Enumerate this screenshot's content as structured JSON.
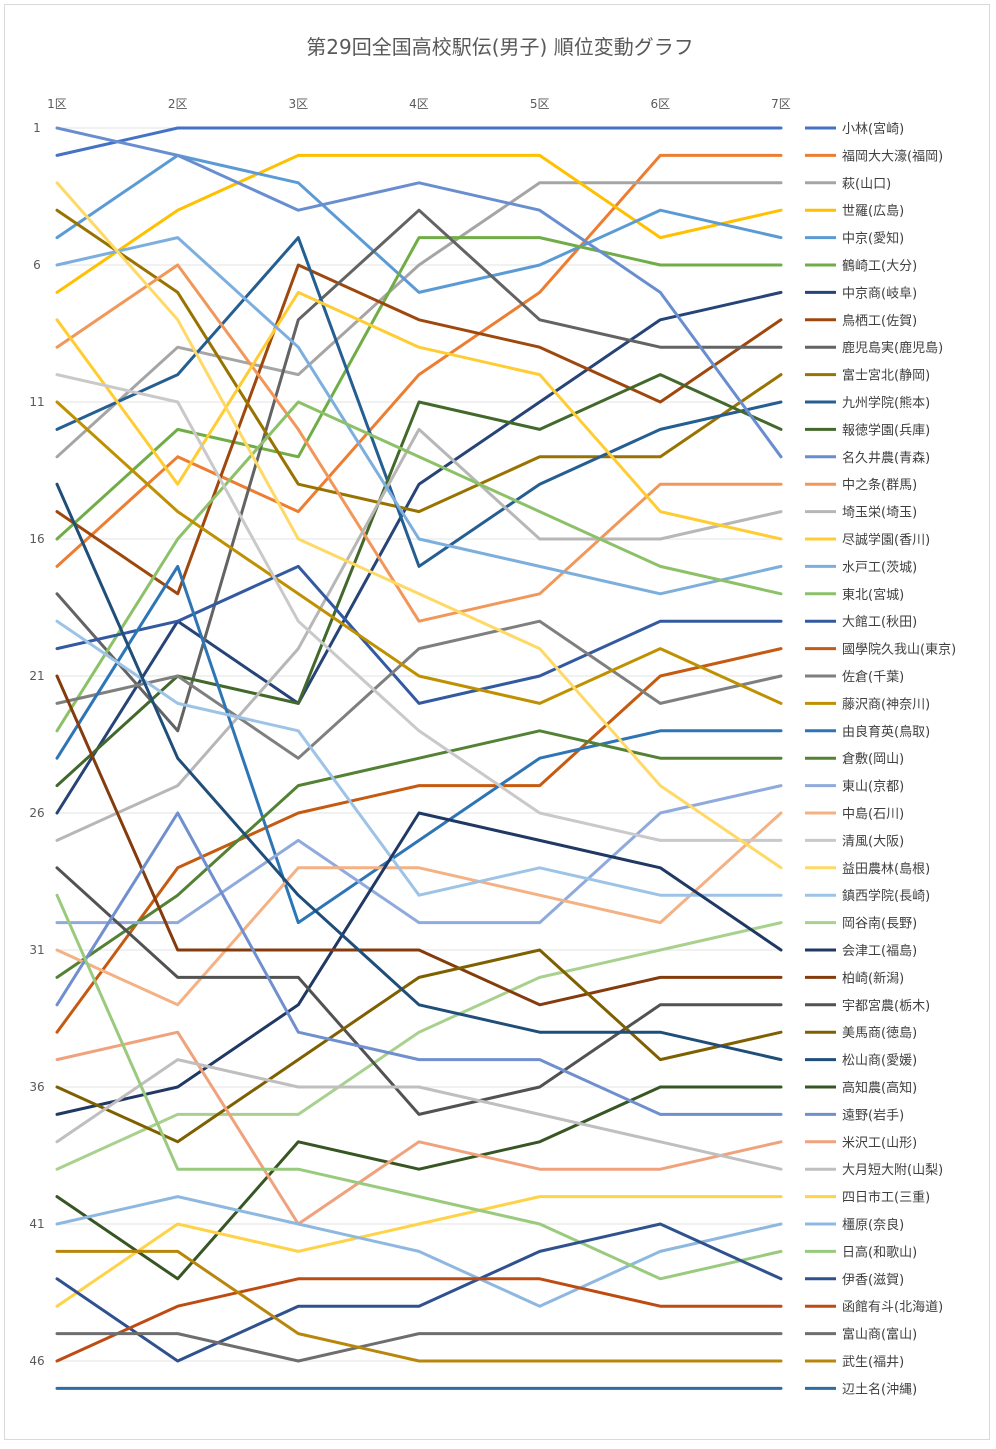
{
  "chart_data": {
    "type": "line",
    "title": "第29回全国高校駅伝(男子) 順位変動グラフ",
    "categories": [
      "1区",
      "2区",
      "3区",
      "4区",
      "5区",
      "6区",
      "7区"
    ],
    "ylim": [
      1,
      47
    ],
    "y_reversed": true,
    "y_ticks": [
      1,
      6,
      11,
      16,
      21,
      26,
      31,
      36,
      41,
      46
    ],
    "grid": true,
    "legend_position": "right",
    "series": [
      {
        "name": "小林(宮崎)",
        "color": "#4472C4",
        "values": [
          2,
          1,
          1,
          1,
          1,
          1,
          1
        ]
      },
      {
        "name": "福岡大大濠(福岡)",
        "color": "#ED7D31",
        "values": [
          17,
          13,
          15,
          10,
          7,
          2,
          2
        ]
      },
      {
        "name": "萩(山口)",
        "color": "#A5A5A5",
        "values": [
          13,
          9,
          10,
          6,
          3,
          3,
          3
        ]
      },
      {
        "name": "世羅(広島)",
        "color": "#FFC000",
        "values": [
          7,
          4,
          2,
          2,
          2,
          5,
          4
        ]
      },
      {
        "name": "中京(愛知)",
        "color": "#5B9BD5",
        "values": [
          5,
          2,
          3,
          7,
          6,
          4,
          5
        ]
      },
      {
        "name": "鶴崎工(大分)",
        "color": "#70AD47",
        "values": [
          16,
          12,
          13,
          5,
          5,
          6,
          6
        ]
      },
      {
        "name": "中京商(岐阜)",
        "color": "#264478",
        "values": [
          26,
          19,
          22,
          14,
          11,
          8,
          7
        ]
      },
      {
        "name": "鳥栖工(佐賀)",
        "color": "#9E480E",
        "values": [
          15,
          18,
          6,
          8,
          9,
          11,
          8
        ]
      },
      {
        "name": "鹿児島実(鹿児島)",
        "color": "#636363",
        "values": [
          18,
          23,
          8,
          4,
          8,
          9,
          9
        ]
      },
      {
        "name": "富士宮北(静岡)",
        "color": "#997300",
        "values": [
          4,
          7,
          14,
          15,
          13,
          13,
          10
        ]
      },
      {
        "name": "九州学院(熊本)",
        "color": "#255E91",
        "values": [
          12,
          10,
          5,
          17,
          14,
          12,
          11
        ]
      },
      {
        "name": "報徳学園(兵庫)",
        "color": "#43682B",
        "values": [
          25,
          21,
          22,
          11,
          12,
          10,
          12
        ]
      },
      {
        "name": "名久井農(青森)",
        "color": "#698ED0",
        "values": [
          1,
          2,
          4,
          3,
          4,
          7,
          13
        ]
      },
      {
        "name": "中之条(群馬)",
        "color": "#F1975A",
        "values": [
          9,
          6,
          12,
          19,
          18,
          14,
          14
        ]
      },
      {
        "name": "埼玉栄(埼玉)",
        "color": "#B7B7B7",
        "values": [
          27,
          25,
          20,
          12,
          16,
          16,
          15
        ]
      },
      {
        "name": "尽誠学園(香川)",
        "color": "#FFCD33",
        "values": [
          8,
          14,
          7,
          9,
          10,
          15,
          16
        ]
      },
      {
        "name": "水戸工(茨城)",
        "color": "#7CAFDD",
        "values": [
          6,
          5,
          9,
          16,
          17,
          18,
          17
        ]
      },
      {
        "name": "東北(宮城)",
        "color": "#8CC168",
        "values": [
          23,
          16,
          11,
          13,
          15,
          17,
          18
        ]
      },
      {
        "name": "大館工(秋田)",
        "color": "#335AA1",
        "values": [
          20,
          19,
          17,
          22,
          21,
          19,
          19
        ]
      },
      {
        "name": "國學院久我山(東京)",
        "color": "#C55A11",
        "values": [
          34,
          28,
          26,
          25,
          25,
          21,
          20
        ]
      },
      {
        "name": "佐倉(千葉)",
        "color": "#7F7F7F",
        "values": [
          22,
          21,
          24,
          20,
          19,
          22,
          21
        ]
      },
      {
        "name": "藤沢商(神奈川)",
        "color": "#BF9000",
        "values": [
          11,
          15,
          18,
          21,
          22,
          20,
          22
        ]
      },
      {
        "name": "由良育英(鳥取)",
        "color": "#2E75B6",
        "values": [
          24,
          17,
          30,
          27,
          24,
          23,
          23
        ]
      },
      {
        "name": "倉敷(岡山)",
        "color": "#548235",
        "values": [
          32,
          29,
          25,
          24,
          23,
          24,
          24
        ]
      },
      {
        "name": "東山(京都)",
        "color": "#8FAADC",
        "values": [
          30,
          30,
          27,
          30,
          30,
          26,
          25
        ]
      },
      {
        "name": "中島(石川)",
        "color": "#F4B183",
        "values": [
          31,
          33,
          28,
          28,
          29,
          30,
          26
        ]
      },
      {
        "name": "清風(大阪)",
        "color": "#C9C9C9",
        "values": [
          10,
          11,
          19,
          23,
          26,
          27,
          27
        ]
      },
      {
        "name": "益田農林(島根)",
        "color": "#FFD966",
        "values": [
          3,
          8,
          16,
          18,
          20,
          25,
          28
        ]
      },
      {
        "name": "鎮西学院(長崎)",
        "color": "#9DC3E6",
        "values": [
          19,
          22,
          23,
          29,
          28,
          29,
          29
        ]
      },
      {
        "name": "岡谷南(長野)",
        "color": "#A9D18E",
        "values": [
          39,
          37,
          37,
          34,
          32,
          31,
          30
        ]
      },
      {
        "name": "会津工(福島)",
        "color": "#203864",
        "values": [
          37,
          36,
          33,
          26,
          27,
          28,
          31
        ]
      },
      {
        "name": "柏崎(新潟)",
        "color": "#843C0C",
        "values": [
          21,
          31,
          31,
          31,
          33,
          32,
          32
        ]
      },
      {
        "name": "宇都宮農(栃木)",
        "color": "#525252",
        "values": [
          28,
          32,
          32,
          37,
          36,
          33,
          33
        ]
      },
      {
        "name": "美馬商(徳島)",
        "color": "#7F6000",
        "values": [
          36,
          38,
          35,
          32,
          31,
          35,
          34
        ]
      },
      {
        "name": "松山商(愛媛)",
        "color": "#1F4E79",
        "values": [
          14,
          24,
          29,
          33,
          34,
          34,
          35
        ]
      },
      {
        "name": "高知農(高知)",
        "color": "#375623",
        "values": [
          40,
          43,
          38,
          39,
          38,
          36,
          36
        ]
      },
      {
        "name": "遠野(岩手)",
        "color": "#6F8FCF",
        "values": [
          33,
          26,
          34,
          35,
          35,
          37,
          37
        ]
      },
      {
        "name": "米沢工(山形)",
        "color": "#F0A27C",
        "values": [
          35,
          34,
          41,
          38,
          39,
          39,
          38
        ]
      },
      {
        "name": "大月短大附(山梨)",
        "color": "#BFBFBF",
        "values": [
          38,
          35,
          36,
          36,
          37,
          38,
          39
        ]
      },
      {
        "name": "四日市工(三重)",
        "color": "#FFD347",
        "values": [
          44,
          41,
          42,
          41,
          40,
          40,
          40
        ]
      },
      {
        "name": "橿原(奈良)",
        "color": "#8EB8E0",
        "values": [
          41,
          40,
          41,
          42,
          44,
          42,
          41
        ]
      },
      {
        "name": "日高(和歌山)",
        "color": "#9ACA7D",
        "values": [
          29,
          39,
          39,
          40,
          41,
          43,
          42
        ]
      },
      {
        "name": "伊香(滋賀)",
        "color": "#2F528F",
        "values": [
          43,
          46,
          44,
          44,
          42,
          41,
          43
        ]
      },
      {
        "name": "函館有斗(北海道)",
        "color": "#BE4B12",
        "values": [
          46,
          44,
          43,
          43,
          43,
          44,
          44
        ]
      },
      {
        "name": "富山商(富山)",
        "color": "#6E6E6E",
        "values": [
          45,
          45,
          46,
          45,
          45,
          45,
          45
        ]
      },
      {
        "name": "武生(福井)",
        "color": "#B8860B",
        "values": [
          42,
          42,
          45,
          46,
          46,
          46,
          46
        ]
      },
      {
        "name": "辺土名(沖縄)",
        "color": "#2E6DA4",
        "values": [
          47,
          47,
          47,
          47,
          47,
          47,
          47
        ]
      }
    ]
  }
}
